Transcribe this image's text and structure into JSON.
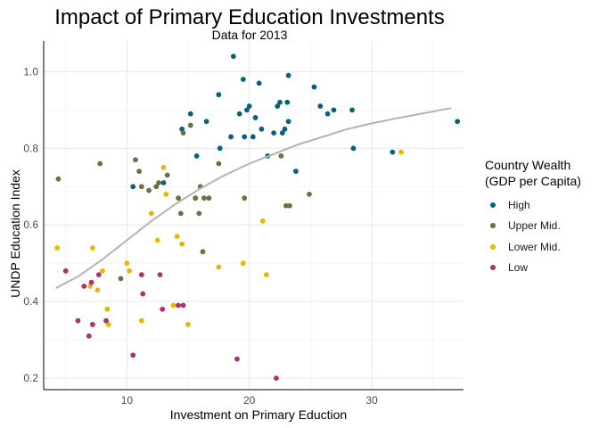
{
  "chart_data": {
    "type": "scatter",
    "title": "Impact of Primary Education Investments",
    "subtitle": "Data for 2013",
    "xlabel": "Investment on Primary Eduction",
    "ylabel": "UNDP Education Index",
    "xlim": [
      3.2,
      37.5
    ],
    "ylim": [
      0.17,
      1.08
    ],
    "x_ticks": [
      10,
      20,
      30
    ],
    "y_ticks": [
      0.2,
      0.4,
      0.6,
      0.8,
      1.0
    ],
    "x_tick_labels": [
      "10",
      "20",
      "30"
    ],
    "y_tick_labels": [
      "0.2",
      "0.4",
      "0.6",
      "0.8",
      "1.0"
    ],
    "grid": true,
    "legend_position": "right",
    "legend_title_lines": [
      "Country Wealth",
      "(GDP per Capita)"
    ],
    "series": [
      {
        "name": "High",
        "color": "#08607f",
        "points": [
          [
            10.5,
            0.7
          ],
          [
            13.0,
            0.71
          ],
          [
            14.5,
            0.85
          ],
          [
            15.2,
            0.89
          ],
          [
            15.7,
            0.78
          ],
          [
            15.6,
            0.67
          ],
          [
            16.5,
            0.87
          ],
          [
            17.5,
            0.94
          ],
          [
            17.6,
            0.8
          ],
          [
            18.5,
            0.83
          ],
          [
            18.7,
            1.04
          ],
          [
            19.2,
            0.89
          ],
          [
            19.5,
            0.98
          ],
          [
            19.6,
            0.83
          ],
          [
            19.8,
            0.9
          ],
          [
            20.0,
            0.91
          ],
          [
            20.3,
            0.83
          ],
          [
            20.5,
            0.88
          ],
          [
            20.8,
            0.97
          ],
          [
            21.0,
            0.85
          ],
          [
            21.5,
            0.78
          ],
          [
            22.0,
            0.84
          ],
          [
            22.3,
            0.91
          ],
          [
            22.5,
            0.92
          ],
          [
            22.7,
            0.84
          ],
          [
            22.9,
            0.85
          ],
          [
            23.1,
            0.92
          ],
          [
            23.2,
            0.99
          ],
          [
            23.2,
            0.87
          ],
          [
            23.8,
            0.74
          ],
          [
            25.3,
            0.96
          ],
          [
            25.8,
            0.91
          ],
          [
            26.4,
            0.89
          ],
          [
            26.9,
            0.9
          ],
          [
            28.4,
            0.9
          ],
          [
            28.5,
            0.8
          ],
          [
            31.7,
            0.79
          ],
          [
            37.0,
            0.87
          ]
        ]
      },
      {
        "name": "Upper Mid.",
        "color": "#6b7040",
        "points": [
          [
            4.4,
            0.72
          ],
          [
            7.8,
            0.76
          ],
          [
            9.5,
            0.46
          ],
          [
            10.7,
            0.77
          ],
          [
            11.0,
            0.74
          ],
          [
            11.2,
            0.7
          ],
          [
            11.8,
            0.69
          ],
          [
            12.4,
            0.7
          ],
          [
            12.6,
            0.71
          ],
          [
            13.3,
            0.73
          ],
          [
            14.2,
            0.67
          ],
          [
            14.4,
            0.63
          ],
          [
            14.6,
            0.84
          ],
          [
            15.2,
            0.86
          ],
          [
            15.6,
            0.67
          ],
          [
            15.9,
            0.63
          ],
          [
            16.0,
            0.7
          ],
          [
            16.2,
            0.53
          ],
          [
            16.3,
            0.67
          ],
          [
            16.7,
            0.67
          ],
          [
            17.5,
            0.76
          ],
          [
            19.6,
            0.67
          ],
          [
            22.6,
            0.78
          ],
          [
            23.0,
            0.65
          ],
          [
            23.3,
            0.65
          ],
          [
            24.9,
            0.68
          ]
        ]
      },
      {
        "name": "Lower Mid.",
        "color": "#e8b800",
        "points": [
          [
            4.3,
            0.54
          ],
          [
            7.0,
            0.44
          ],
          [
            7.2,
            0.54
          ],
          [
            7.6,
            0.43
          ],
          [
            8.0,
            0.48
          ],
          [
            8.4,
            0.38
          ],
          [
            8.5,
            0.34
          ],
          [
            10.0,
            0.5
          ],
          [
            10.2,
            0.48
          ],
          [
            11.2,
            0.35
          ],
          [
            12.0,
            0.63
          ],
          [
            12.5,
            0.56
          ],
          [
            13.0,
            0.75
          ],
          [
            13.2,
            0.68
          ],
          [
            13.8,
            0.39
          ],
          [
            14.1,
            0.57
          ],
          [
            14.5,
            0.55
          ],
          [
            15.0,
            0.34
          ],
          [
            17.5,
            0.49
          ],
          [
            19.5,
            0.5
          ],
          [
            21.1,
            0.61
          ],
          [
            21.4,
            0.47
          ],
          [
            32.4,
            0.79
          ]
        ]
      },
      {
        "name": "Low",
        "color": "#a8326e",
        "points": [
          [
            5.0,
            0.48
          ],
          [
            6.0,
            0.35
          ],
          [
            6.5,
            0.44
          ],
          [
            6.9,
            0.31
          ],
          [
            7.1,
            0.45
          ],
          [
            7.2,
            0.34
          ],
          [
            7.7,
            0.47
          ],
          [
            8.3,
            0.35
          ],
          [
            10.5,
            0.26
          ],
          [
            11.2,
            0.47
          ],
          [
            11.3,
            0.42
          ],
          [
            12.7,
            0.47
          ],
          [
            12.9,
            0.38
          ],
          [
            14.2,
            0.39
          ],
          [
            14.6,
            0.39
          ],
          [
            19.0,
            0.25
          ],
          [
            22.2,
            0.2
          ]
        ]
      }
    ],
    "trend_line": {
      "color": "#b3b3b3",
      "points": [
        [
          4.2,
          0.435
        ],
        [
          6,
          0.465
        ],
        [
          8,
          0.51
        ],
        [
          10,
          0.56
        ],
        [
          12,
          0.61
        ],
        [
          14,
          0.655
        ],
        [
          16,
          0.695
        ],
        [
          18,
          0.73
        ],
        [
          20,
          0.76
        ],
        [
          22,
          0.785
        ],
        [
          24,
          0.81
        ],
        [
          26,
          0.83
        ],
        [
          28,
          0.85
        ],
        [
          30,
          0.865
        ],
        [
          32,
          0.878
        ],
        [
          34,
          0.89
        ],
        [
          36.5,
          0.905
        ]
      ]
    }
  }
}
